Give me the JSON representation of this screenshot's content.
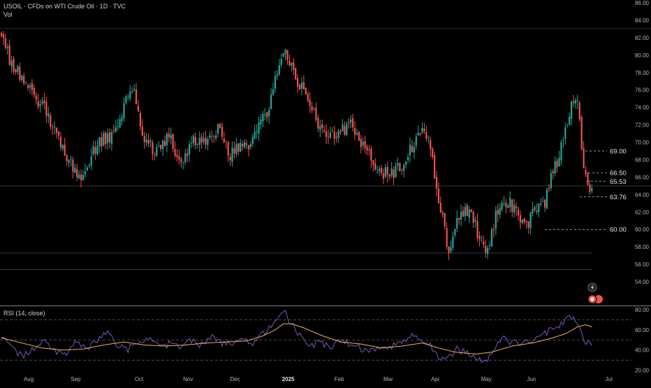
{
  "header": {
    "title": "USOIL · CFDs on WTI Crude Oil · 1D · TVC",
    "volume_label": "Vol",
    "rsi_label": "RSI (14, close)"
  },
  "colors": {
    "up": "#26a69a",
    "down": "#ef5350",
    "rsi_line": "#7e57c2",
    "rsi_ma": "#f0b45a",
    "grid": "#2a2e39",
    "text": "#b2b5be",
    "level_line": "#9598a1"
  },
  "icons": [
    "lightning-icon",
    "event-flag-icon"
  ],
  "chart_data": [
    {
      "type": "candlestick",
      "title": "USOIL · CFDs on WTI Crude Oil · 1D · TVC",
      "x_tick_labels": [
        "Aug",
        "Sep",
        "Oct",
        "Nov",
        "Dec",
        "2025",
        "Feb",
        "Mar",
        "Apr",
        "May",
        "Jun",
        "Jul"
      ],
      "y_tick_labels": [
        "54.00",
        "56.00",
        "58.00",
        "60.00",
        "62.00",
        "64.00",
        "66.00",
        "68.00",
        "70.00",
        "72.00",
        "74.00",
        "76.00",
        "78.00",
        "80.00",
        "82.00",
        "84.00",
        "86.00"
      ],
      "ylim": [
        52.8,
        86.0
      ],
      "price_anchors": [
        [
          0,
          82.7
        ],
        [
          4,
          79.5
        ],
        [
          10,
          77.6
        ],
        [
          16,
          75.0
        ],
        [
          22,
          73.5
        ],
        [
          28,
          70.5
        ],
        [
          34,
          67.5
        ],
        [
          40,
          65.9
        ],
        [
          46,
          69.5
        ],
        [
          52,
          70.6
        ],
        [
          56,
          71.0
        ],
        [
          62,
          75.5
        ],
        [
          64,
          76.5
        ],
        [
          70,
          70.2
        ],
        [
          76,
          69.0
        ],
        [
          82,
          70.5
        ],
        [
          88,
          67.8
        ],
        [
          94,
          70.3
        ],
        [
          100,
          69.5
        ],
        [
          106,
          71.7
        ],
        [
          112,
          68.6
        ],
        [
          118,
          69.5
        ],
        [
          122,
          69.8
        ],
        [
          126,
          71.8
        ],
        [
          131,
          73.5
        ],
        [
          136,
          79.5
        ],
        [
          139,
          80.3
        ],
        [
          145,
          76.5
        ],
        [
          150,
          75.4
        ],
        [
          156,
          71.6
        ],
        [
          162,
          70.9
        ],
        [
          167,
          71.3
        ],
        [
          171,
          72.5
        ],
        [
          176,
          69.8
        ],
        [
          182,
          67.5
        ],
        [
          186,
          66.5
        ],
        [
          192,
          66.7
        ],
        [
          197,
          67.8
        ],
        [
          203,
          70.0
        ],
        [
          207,
          71.5
        ],
        [
          211,
          68.5
        ],
        [
          214,
          62.5
        ],
        [
          217,
          61.0
        ],
        [
          219,
          56.6
        ],
        [
          223,
          61.0
        ],
        [
          227,
          62.5
        ],
        [
          231,
          60.9
        ],
        [
          235,
          58.5
        ],
        [
          238,
          57.2
        ],
        [
          242,
          61.5
        ],
        [
          246,
          63.2
        ],
        [
          250,
          62.8
        ],
        [
          254,
          61.4
        ],
        [
          258,
          61.0
        ],
        [
          262,
          62.7
        ],
        [
          266,
          63.3
        ],
        [
          270,
          67.0
        ],
        [
          273,
          68.2
        ],
        [
          276,
          71.5
        ],
        [
          279,
          74.0
        ],
        [
          282,
          75.0
        ],
        [
          283,
          72.8
        ],
        [
          285,
          66.5
        ],
        [
          287,
          65.2
        ],
        [
          289,
          64.9
        ]
      ],
      "levels": [
        {
          "label": "69.00",
          "value": 69.0,
          "style": "dashed"
        },
        {
          "label": "66.50",
          "value": 66.5,
          "style": "dashed"
        },
        {
          "label": "65.53",
          "value": 65.53,
          "style": "dashed"
        },
        {
          "label": "63.76",
          "value": 63.76,
          "style": "dashed"
        },
        {
          "label": "60.00",
          "value": 60.0,
          "style": "dashed"
        }
      ],
      "horizontal_lines": [
        65.0,
        57.3,
        55.4
      ],
      "grid": false
    },
    {
      "type": "line",
      "title": "RSI (14, close)",
      "y_tick_labels": [
        "20.00",
        "40.00",
        "60.00",
        "80.00"
      ],
      "ylim": [
        17,
        82
      ],
      "bands": [
        30,
        50,
        70
      ],
      "series": [
        {
          "role": "rsi",
          "anchors": [
            [
              0,
              55
            ],
            [
              6,
              40
            ],
            [
              11,
              34
            ],
            [
              16,
              41
            ],
            [
              21,
              50
            ],
            [
              26,
              40
            ],
            [
              31,
              36
            ],
            [
              36,
              47
            ],
            [
              42,
              40
            ],
            [
              47,
              50
            ],
            [
              52,
              57
            ],
            [
              57,
              44
            ],
            [
              62,
              41
            ],
            [
              67,
              47
            ],
            [
              72,
              51
            ],
            [
              77,
              43
            ],
            [
              82,
              46
            ],
            [
              88,
              44
            ],
            [
              93,
              49
            ],
            [
              98,
              45
            ],
            [
              103,
              53
            ],
            [
              108,
              46
            ],
            [
              113,
              48
            ],
            [
              118,
              52
            ],
            [
              123,
              46
            ],
            [
              128,
              57
            ],
            [
              133,
              64
            ],
            [
              137,
              73
            ],
            [
              139,
              76
            ],
            [
              142,
              66
            ],
            [
              146,
              55
            ],
            [
              151,
              45
            ],
            [
              156,
              47
            ],
            [
              161,
              42
            ],
            [
              166,
              50
            ],
            [
              171,
              45
            ],
            [
              176,
              41
            ],
            [
              181,
              39
            ],
            [
              186,
              42
            ],
            [
              191,
              44
            ],
            [
              196,
              50
            ],
            [
              201,
              54
            ],
            [
              206,
              48
            ],
            [
              210,
              44
            ],
            [
              213,
              36
            ],
            [
              216,
              30
            ],
            [
              219,
              32
            ],
            [
              223,
              41
            ],
            [
              227,
              38
            ],
            [
              231,
              35
            ],
            [
              235,
              30
            ],
            [
              238,
              32
            ],
            [
              242,
              44
            ],
            [
              246,
              51
            ],
            [
              250,
              48
            ],
            [
              254,
              47
            ],
            [
              258,
              49
            ],
            [
              262,
              52
            ],
            [
              266,
              56
            ],
            [
              270,
              62
            ],
            [
              274,
              66
            ],
            [
              278,
              72
            ],
            [
              281,
              70
            ],
            [
              283,
              62
            ],
            [
              285,
              50
            ],
            [
              287,
              47
            ],
            [
              289,
              47
            ]
          ]
        },
        {
          "role": "rsi_ma",
          "anchors": [
            [
              0,
              52
            ],
            [
              10,
              47
            ],
            [
              20,
              42
            ],
            [
              30,
              40
            ],
            [
              40,
              41
            ],
            [
              50,
              45
            ],
            [
              60,
              48
            ],
            [
              70,
              45
            ],
            [
              80,
              44
            ],
            [
              90,
              45
            ],
            [
              100,
              47
            ],
            [
              110,
              48
            ],
            [
              120,
              49
            ],
            [
              128,
              54
            ],
            [
              134,
              60
            ],
            [
              138,
              66
            ],
            [
              142,
              66
            ],
            [
              148,
              62
            ],
            [
              156,
              55
            ],
            [
              166,
              48
            ],
            [
              176,
              46
            ],
            [
              186,
              42
            ],
            [
              196,
              44
            ],
            [
              206,
              47
            ],
            [
              214,
              42
            ],
            [
              222,
              38
            ],
            [
              232,
              36
            ],
            [
              240,
              38
            ],
            [
              250,
              44
            ],
            [
              260,
              47
            ],
            [
              268,
              51
            ],
            [
              276,
              56
            ],
            [
              282,
              63
            ],
            [
              286,
              65
            ],
            [
              289,
              63
            ]
          ]
        }
      ]
    }
  ]
}
